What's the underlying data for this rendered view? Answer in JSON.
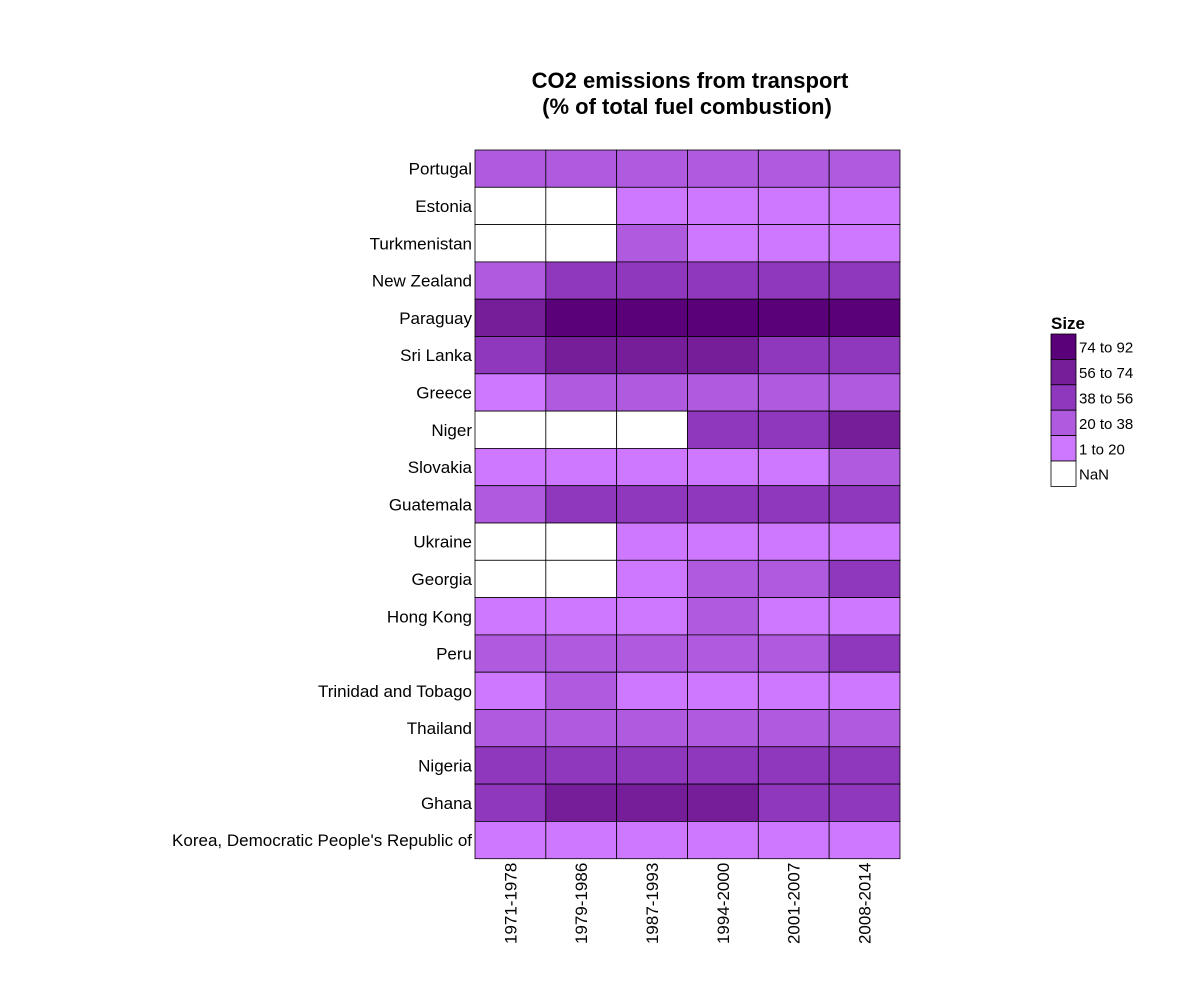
{
  "chart_data": {
    "type": "heatmap",
    "title_lines": [
      "CO2 emissions from transport",
      "(% of total fuel combustion)"
    ],
    "columns": [
      "1971-1978",
      "1979-1986",
      "1987-1993",
      "1994-2000",
      "2001-2007",
      "2008-2014"
    ],
    "rows": [
      "Portugal",
      "Estonia",
      "Turkmenistan",
      "New Zealand",
      "Paraguay",
      "Sri Lanka",
      "Greece",
      "Niger",
      "Slovakia",
      "Guatemala",
      "Ukraine",
      "Georgia",
      "Hong Kong",
      "Peru",
      "Trinidad and Tobago",
      "Thailand",
      "Nigeria",
      "Ghana",
      "Korea, Democratic People's Republic of"
    ],
    "cells": [
      [
        "20 to 38",
        "20 to 38",
        "20 to 38",
        "20 to 38",
        "20 to 38",
        "20 to 38"
      ],
      [
        "NaN",
        "NaN",
        "1 to 20",
        "1 to 20",
        "1 to 20",
        "1 to 20"
      ],
      [
        "NaN",
        "NaN",
        "20 to 38",
        "1 to 20",
        "1 to 20",
        "1 to 20"
      ],
      [
        "20 to 38",
        "38 to 56",
        "38 to 56",
        "38 to 56",
        "38 to 56",
        "38 to 56"
      ],
      [
        "56 to 74",
        "74 to 92",
        "74 to 92",
        "74 to 92",
        "74 to 92",
        "74 to 92"
      ],
      [
        "38 to 56",
        "56 to 74",
        "56 to 74",
        "56 to 74",
        "38 to 56",
        "38 to 56"
      ],
      [
        "1 to 20",
        "20 to 38",
        "20 to 38",
        "20 to 38",
        "20 to 38",
        "20 to 38"
      ],
      [
        "NaN",
        "NaN",
        "NaN",
        "38 to 56",
        "38 to 56",
        "56 to 74"
      ],
      [
        "1 to 20",
        "1 to 20",
        "1 to 20",
        "1 to 20",
        "1 to 20",
        "20 to 38"
      ],
      [
        "20 to 38",
        "38 to 56",
        "38 to 56",
        "38 to 56",
        "38 to 56",
        "38 to 56"
      ],
      [
        "NaN",
        "NaN",
        "1 to 20",
        "1 to 20",
        "1 to 20",
        "1 to 20"
      ],
      [
        "NaN",
        "NaN",
        "1 to 20",
        "20 to 38",
        "20 to 38",
        "38 to 56"
      ],
      [
        "1 to 20",
        "1 to 20",
        "1 to 20",
        "20 to 38",
        "1 to 20",
        "1 to 20"
      ],
      [
        "20 to 38",
        "20 to 38",
        "20 to 38",
        "20 to 38",
        "20 to 38",
        "38 to 56"
      ],
      [
        "1 to 20",
        "20 to 38",
        "1 to 20",
        "1 to 20",
        "1 to 20",
        "1 to 20"
      ],
      [
        "20 to 38",
        "20 to 38",
        "20 to 38",
        "20 to 38",
        "20 to 38",
        "20 to 38"
      ],
      [
        "38 to 56",
        "38 to 56",
        "38 to 56",
        "38 to 56",
        "38 to 56",
        "38 to 56"
      ],
      [
        "38 to 56",
        "56 to 74",
        "56 to 74",
        "56 to 74",
        "38 to 56",
        "38 to 56"
      ],
      [
        "1 to 20",
        "1 to 20",
        "1 to 20",
        "1 to 20",
        "1 to 20",
        "1 to 20"
      ]
    ],
    "legend": {
      "title": "Size",
      "placement": "right",
      "entries": [
        {
          "label": "74 to 92",
          "color": "#5a0078"
        },
        {
          "label": "56 to 74",
          "color": "#761d99"
        },
        {
          "label": "38 to 56",
          "color": "#9038bd"
        },
        {
          "label": "20 to 38",
          "color": "#b05ae0"
        },
        {
          "label": "1 to 20",
          "color": "#ce78ff"
        },
        {
          "label": "NaN",
          "color": "#ffffff"
        }
      ]
    }
  }
}
